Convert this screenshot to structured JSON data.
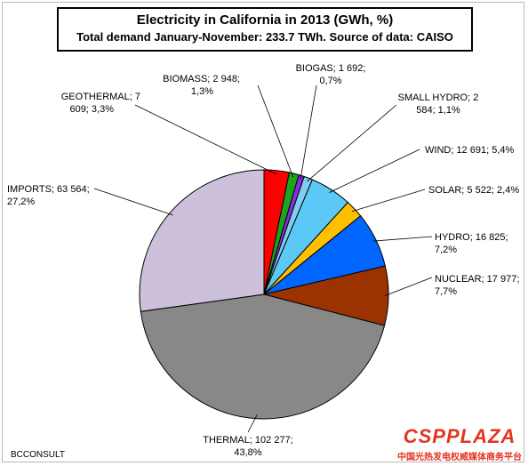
{
  "header": {
    "title": "Electricity in California in 2013 (GWh, %)",
    "subtitle": "Total demand January-November: 233.7 TWh. Source of data: CAISO"
  },
  "credit": "BCCONSULT",
  "logo": {
    "name": "CSPPLAZA",
    "tagline": "中国光热发电权威媒体商务平台"
  },
  "chart_data": {
    "type": "pie",
    "title": "Electricity in California in 2013 (GWh, %)",
    "subtitle": "Total demand January-November: 233.7 TWh. Source of data: CAISO",
    "start_angle_deg": 0,
    "direction": "clockwise",
    "slices": [
      {
        "name": "GEOTHERMAL",
        "value": 7609,
        "percent": 3.3,
        "color": "#ff0000",
        "lines": [
          "GEOTHERMAL; 7",
          "609; 3,3%"
        ]
      },
      {
        "name": "BIOMASS",
        "value": 2948,
        "percent": 1.3,
        "color": "#1aa51a",
        "lines": [
          "BIOMASS; 2 948;",
          "1,3%"
        ]
      },
      {
        "name": "BIOGAS",
        "value": 1692,
        "percent": 0.7,
        "color": "#8a2be2",
        "lines": [
          "BIOGAS; 1 692;",
          "0,7%"
        ]
      },
      {
        "name": "SMALL HYDRO",
        "value": 2584,
        "percent": 1.1,
        "color": "#7fd0ee",
        "lines": [
          "SMALL HYDRO; 2",
          "584; 1,1%"
        ]
      },
      {
        "name": "WIND",
        "value": 12691,
        "percent": 5.4,
        "color": "#5cc8f5",
        "lines": [
          "WIND; 12 691; 5,4%"
        ]
      },
      {
        "name": "SOLAR",
        "value": 5522,
        "percent": 2.4,
        "color": "#ffc000",
        "lines": [
          "SOLAR; 5 522; 2,4%"
        ]
      },
      {
        "name": "HYDRO",
        "value": 16825,
        "percent": 7.2,
        "color": "#0066ff",
        "lines": [
          "HYDRO; 16 825;",
          "7,2%"
        ]
      },
      {
        "name": "NUCLEAR",
        "value": 17977,
        "percent": 7.7,
        "color": "#9b3300",
        "lines": [
          "NUCLEAR; 17 977;",
          "7,7%"
        ]
      },
      {
        "name": "THERMAL",
        "value": 102277,
        "percent": 43.8,
        "color": "#888888",
        "lines": [
          "THERMAL; 102 277;",
          "43,8%"
        ]
      },
      {
        "name": "IMPORTS",
        "value": 63564,
        "percent": 27.2,
        "color": "#ccc0da",
        "lines": [
          "IMPORTS; 63 564;",
          "27,2%"
        ]
      }
    ]
  }
}
